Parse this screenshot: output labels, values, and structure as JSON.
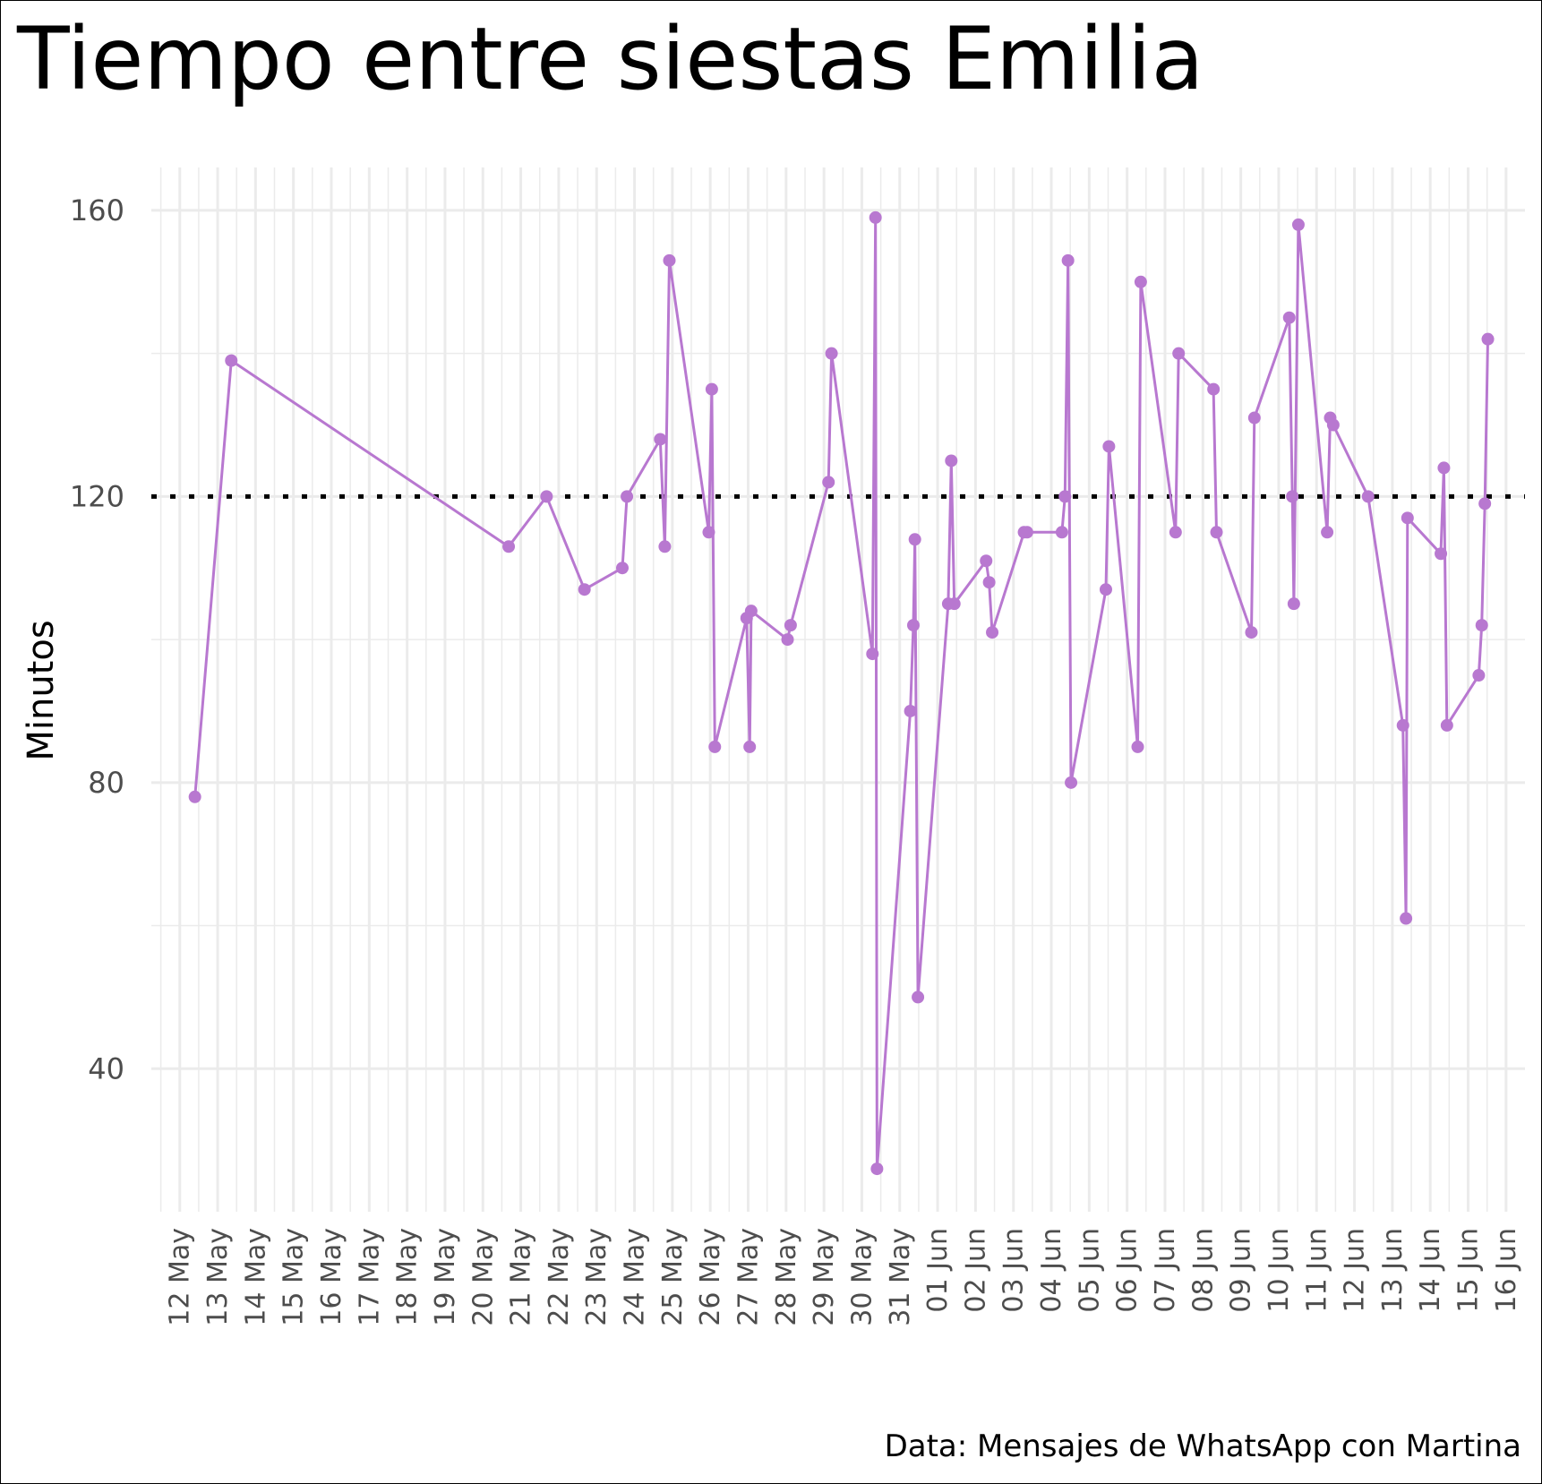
{
  "chart_data": {
    "type": "line",
    "title": "Tiempo entre siestas Emilia",
    "ylabel": "Minutos",
    "xlabel": "",
    "caption": "Data: Mensajes de WhatsApp con Martina",
    "series_color": "#b878d0",
    "reference_line": {
      "y": 120,
      "style": "dotted",
      "color": "#000000"
    },
    "grid": true,
    "xlim": [
      "2023-05-11 06:00",
      "2023-06-16 12:00"
    ],
    "ylim": [
      20,
      166
    ],
    "y_ticks": [
      40,
      80,
      120,
      160
    ],
    "x_ticks": [
      "12 May",
      "13 May",
      "14 May",
      "15 May",
      "16 May",
      "17 May",
      "18 May",
      "19 May",
      "20 May",
      "21 May",
      "22 May",
      "23 May",
      "24 May",
      "25 May",
      "26 May",
      "27 May",
      "28 May",
      "29 May",
      "30 May",
      "31 May",
      "01 Jun",
      "02 Jun",
      "03 Jun",
      "04 Jun",
      "05 Jun",
      "06 Jun",
      "07 Jun",
      "08 Jun",
      "09 Jun",
      "10 Jun",
      "11 Jun",
      "12 Jun",
      "13 Jun",
      "14 Jun",
      "15 Jun",
      "16 Jun"
    ],
    "x_tick_dates": [
      "2023-05-12",
      "2023-05-13",
      "2023-05-14",
      "2023-05-15",
      "2023-05-16",
      "2023-05-17",
      "2023-05-18",
      "2023-05-19",
      "2023-05-20",
      "2023-05-21",
      "2023-05-22",
      "2023-05-23",
      "2023-05-24",
      "2023-05-25",
      "2023-05-26",
      "2023-05-27",
      "2023-05-28",
      "2023-05-29",
      "2023-05-30",
      "2023-05-31",
      "2023-06-01",
      "2023-06-02",
      "2023-06-03",
      "2023-06-04",
      "2023-06-05",
      "2023-06-06",
      "2023-06-07",
      "2023-06-08",
      "2023-06-09",
      "2023-06-10",
      "2023-06-11",
      "2023-06-12",
      "2023-06-13",
      "2023-06-14",
      "2023-06-15",
      "2023-06-16"
    ],
    "points": [
      {
        "x": "2023-05-12 09:36",
        "y": 78
      },
      {
        "x": "2023-05-13 08:38",
        "y": 139
      },
      {
        "x": "2023-05-20 16:19",
        "y": 113
      },
      {
        "x": "2023-05-21 16:19",
        "y": 120
      },
      {
        "x": "2023-05-22 16:19",
        "y": 107
      },
      {
        "x": "2023-05-23 16:19",
        "y": 110
      },
      {
        "x": "2023-05-23 19:12",
        "y": 120
      },
      {
        "x": "2023-05-24 16:19",
        "y": 128
      },
      {
        "x": "2023-05-24 19:12",
        "y": 113
      },
      {
        "x": "2023-05-24 22:05",
        "y": 153
      },
      {
        "x": "2023-05-25 23:02",
        "y": 115
      },
      {
        "x": "2023-05-26 00:58",
        "y": 135
      },
      {
        "x": "2023-05-26 02:53",
        "y": 85
      },
      {
        "x": "2023-05-26 23:02",
        "y": 103
      },
      {
        "x": "2023-05-27 00:58",
        "y": 85
      },
      {
        "x": "2023-05-27 01:55",
        "y": 104
      },
      {
        "x": "2023-05-28 00:58",
        "y": 100
      },
      {
        "x": "2023-05-28 02:53",
        "y": 102
      },
      {
        "x": "2023-05-29 02:53",
        "y": 122
      },
      {
        "x": "2023-05-29 04:48",
        "y": 140
      },
      {
        "x": "2023-05-30 06:43",
        "y": 98
      },
      {
        "x": "2023-05-30 08:38",
        "y": 159
      },
      {
        "x": "2023-05-30 09:36",
        "y": 26
      },
      {
        "x": "2023-05-31 06:43",
        "y": 90
      },
      {
        "x": "2023-05-31 08:38",
        "y": 102
      },
      {
        "x": "2023-05-31 09:36",
        "y": 114
      },
      {
        "x": "2023-05-31 11:31",
        "y": 50
      },
      {
        "x": "2023-06-01 06:43",
        "y": 105
      },
      {
        "x": "2023-06-01 08:38",
        "y": 125
      },
      {
        "x": "2023-06-01 10:34",
        "y": 105
      },
      {
        "x": "2023-06-02 06:43",
        "y": 111
      },
      {
        "x": "2023-06-02 08:38",
        "y": 108
      },
      {
        "x": "2023-06-02 10:34",
        "y": 101
      },
      {
        "x": "2023-06-03 06:43",
        "y": 115
      },
      {
        "x": "2023-06-03 08:38",
        "y": 115
      },
      {
        "x": "2023-06-04 06:43",
        "y": 115
      },
      {
        "x": "2023-06-04 08:38",
        "y": 120
      },
      {
        "x": "2023-06-04 10:34",
        "y": 153
      },
      {
        "x": "2023-06-04 12:29",
        "y": 80
      },
      {
        "x": "2023-06-05 10:34",
        "y": 107
      },
      {
        "x": "2023-06-05 12:29",
        "y": 127
      },
      {
        "x": "2023-06-06 06:43",
        "y": 85
      },
      {
        "x": "2023-06-06 08:38",
        "y": 150
      },
      {
        "x": "2023-06-07 06:43",
        "y": 115
      },
      {
        "x": "2023-06-07 08:38",
        "y": 140
      },
      {
        "x": "2023-06-08 06:43",
        "y": 135
      },
      {
        "x": "2023-06-08 08:38",
        "y": 115
      },
      {
        "x": "2023-06-09 06:43",
        "y": 101
      },
      {
        "x": "2023-06-09 08:38",
        "y": 131
      },
      {
        "x": "2023-06-10 06:43",
        "y": 145
      },
      {
        "x": "2023-06-10 08:38",
        "y": 120
      },
      {
        "x": "2023-06-10 09:36",
        "y": 105
      },
      {
        "x": "2023-06-10 12:29",
        "y": 158
      },
      {
        "x": "2023-06-11 06:43",
        "y": 115
      },
      {
        "x": "2023-06-11 08:38",
        "y": 131
      },
      {
        "x": "2023-06-11 10:34",
        "y": 130
      },
      {
        "x": "2023-06-12 08:38",
        "y": 120
      },
      {
        "x": "2023-06-13 06:43",
        "y": 88
      },
      {
        "x": "2023-06-13 08:38",
        "y": 61
      },
      {
        "x": "2023-06-13 09:36",
        "y": 117
      },
      {
        "x": "2023-06-14 06:43",
        "y": 112
      },
      {
        "x": "2023-06-14 08:38",
        "y": 124
      },
      {
        "x": "2023-06-14 10:34",
        "y": 88
      },
      {
        "x": "2023-06-15 06:43",
        "y": 95
      },
      {
        "x": "2023-06-15 08:38",
        "y": 102
      },
      {
        "x": "2023-06-15 10:34",
        "y": 119
      },
      {
        "x": "2023-06-15 12:29",
        "y": 142
      }
    ]
  }
}
